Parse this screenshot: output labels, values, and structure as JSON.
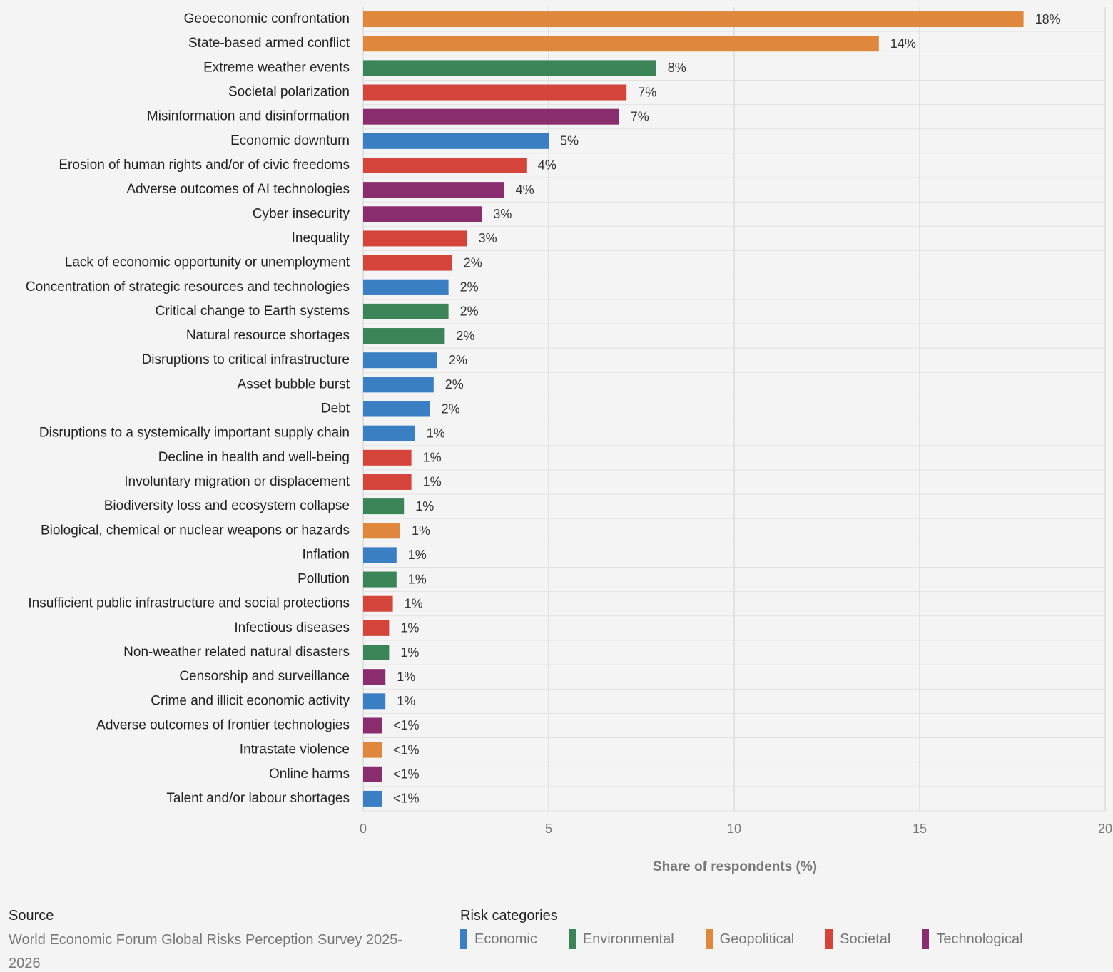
{
  "chart_data": {
    "type": "bar",
    "orientation": "horizontal",
    "categories": [
      "Geoeconomic confrontation",
      "State-based armed conflict",
      "Extreme weather events",
      "Societal polarization",
      "Misinformation and disinformation",
      "Economic downturn",
      "Erosion of human rights and/or of civic freedoms",
      "Adverse outcomes of AI technologies",
      "Cyber insecurity",
      "Inequality",
      "Lack of economic opportunity or unemployment",
      "Concentration of strategic resources and technologies",
      "Critical change to Earth systems",
      "Natural resource shortages",
      "Disruptions to critical infrastructure",
      "Asset bubble burst",
      "Debt",
      "Disruptions to a systemically important supply chain",
      "Decline in health and well-being",
      "Involuntary migration or displacement",
      "Biodiversity loss and ecosystem collapse",
      "Biological, chemical or nuclear weapons or hazards",
      "Inflation",
      "Pollution",
      "Insufficient public infrastructure and social protections",
      "Infectious diseases",
      "Non-weather related natural disasters",
      "Censorship and surveillance",
      "Crime and illicit economic activity",
      "Adverse outcomes of frontier technologies",
      "Intrastate violence",
      "Online harms",
      "Talent and/or labour shortages"
    ],
    "series": [
      {
        "name": "Economic",
        "color": "#3a7fc4",
        "values": [
          null,
          null,
          null,
          null,
          null,
          5.0,
          null,
          null,
          null,
          null,
          null,
          2.3,
          null,
          null,
          2.0,
          1.9,
          1.8,
          1.4,
          null,
          null,
          null,
          null,
          0.9,
          null,
          null,
          null,
          null,
          null,
          0.6,
          null,
          null,
          null,
          0.5
        ],
        "value_labels": [
          null,
          null,
          null,
          null,
          null,
          "5%",
          null,
          null,
          null,
          null,
          null,
          "2%",
          null,
          null,
          "2%",
          "2%",
          "2%",
          "1%",
          null,
          null,
          null,
          null,
          "1%",
          null,
          null,
          null,
          null,
          null,
          "1%",
          null,
          null,
          null,
          "<1%"
        ]
      },
      {
        "name": "Environmental",
        "color": "#3a8458",
        "values": [
          null,
          null,
          7.9,
          null,
          null,
          null,
          null,
          null,
          null,
          null,
          null,
          null,
          2.3,
          2.2,
          null,
          null,
          null,
          null,
          null,
          null,
          1.1,
          null,
          null,
          0.9,
          null,
          null,
          0.7,
          null,
          null,
          null,
          null,
          null,
          null
        ],
        "value_labels": [
          null,
          null,
          "8%",
          null,
          null,
          null,
          null,
          null,
          null,
          null,
          null,
          null,
          "2%",
          "2%",
          null,
          null,
          null,
          null,
          null,
          null,
          "1%",
          null,
          null,
          "1%",
          null,
          null,
          "1%",
          null,
          null,
          null,
          null,
          null,
          null
        ]
      },
      {
        "name": "Geopolitical",
        "color": "#de873d",
        "values": [
          17.8,
          13.9,
          null,
          null,
          null,
          null,
          null,
          null,
          null,
          null,
          null,
          null,
          null,
          null,
          null,
          null,
          null,
          null,
          null,
          null,
          null,
          1.0,
          null,
          null,
          null,
          null,
          null,
          null,
          null,
          null,
          0.5,
          null,
          null
        ],
        "value_labels": [
          "18%",
          "14%",
          null,
          null,
          null,
          null,
          null,
          null,
          null,
          null,
          null,
          null,
          null,
          null,
          null,
          null,
          null,
          null,
          null,
          null,
          null,
          "1%",
          null,
          null,
          null,
          null,
          null,
          null,
          null,
          null,
          "<1%",
          null,
          null
        ]
      },
      {
        "name": "Societal",
        "color": "#d4443a",
        "values": [
          null,
          null,
          null,
          7.1,
          null,
          null,
          4.4,
          null,
          null,
          2.8,
          2.4,
          null,
          null,
          null,
          null,
          null,
          null,
          null,
          1.3,
          1.3,
          null,
          null,
          null,
          null,
          0.8,
          0.7,
          null,
          null,
          null,
          null,
          null,
          null,
          null
        ],
        "value_labels": [
          null,
          null,
          null,
          "7%",
          null,
          null,
          "4%",
          null,
          null,
          "3%",
          "2%",
          null,
          null,
          null,
          null,
          null,
          null,
          null,
          "1%",
          "1%",
          null,
          null,
          null,
          null,
          "1%",
          "1%",
          null,
          null,
          null,
          null,
          null,
          null,
          null
        ]
      },
      {
        "name": "Technological",
        "color": "#8a2d6e",
        "values": [
          null,
          null,
          null,
          null,
          6.9,
          null,
          null,
          3.8,
          3.2,
          null,
          null,
          null,
          null,
          null,
          null,
          null,
          null,
          null,
          null,
          null,
          null,
          null,
          null,
          null,
          null,
          null,
          null,
          0.6,
          null,
          0.5,
          null,
          0.5,
          null
        ],
        "value_labels": [
          null,
          null,
          null,
          null,
          "7%",
          null,
          null,
          "4%",
          "3%",
          null,
          null,
          null,
          null,
          null,
          null,
          null,
          null,
          null,
          null,
          null,
          null,
          null,
          null,
          null,
          null,
          null,
          null,
          "1%",
          null,
          "<1%",
          null,
          "<1%",
          null
        ]
      }
    ],
    "xlim": [
      0,
      20
    ],
    "xticks": [
      0,
      5,
      10,
      15,
      20
    ],
    "xlabel": "Share of respondents (%)",
    "grid": true,
    "legend_title": "Risk categories",
    "source_label": "Source",
    "source": "World Economic Forum Global Risks Perception Survey 2025-2026"
  }
}
